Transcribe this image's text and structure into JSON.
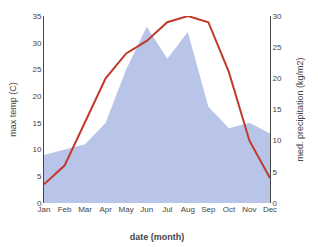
{
  "chart_data": {
    "type": "line",
    "xlabel": "date (month)",
    "ylabel": "max temp (C)",
    "y2label": "med. precipitation (kg/m2)",
    "categories": [
      "Jan",
      "Feb",
      "Mar",
      "Apr",
      "May",
      "Jun",
      "Jul",
      "Aug",
      "Sep",
      "Oct",
      "Nov",
      "Dec"
    ],
    "series": [
      {
        "type": "area",
        "color": "#b8c4e8",
        "values": [
          9,
          10,
          11,
          15,
          25,
          33,
          27,
          32,
          18,
          14,
          15,
          13
        ]
      },
      {
        "type": "line",
        "color": "#c0392b",
        "axis": "y2",
        "values": [
          3,
          6,
          13,
          20,
          24,
          26,
          29,
          30,
          29,
          21,
          10,
          4
        ]
      }
    ],
    "ylim": [
      0,
      35
    ],
    "yticks": [
      0,
      5,
      10,
      15,
      20,
      25,
      30,
      35
    ],
    "y2lim": [
      0,
      30
    ],
    "y2ticks": [
      0,
      5,
      10,
      15,
      20,
      25,
      30
    ],
    "grid": false
  }
}
